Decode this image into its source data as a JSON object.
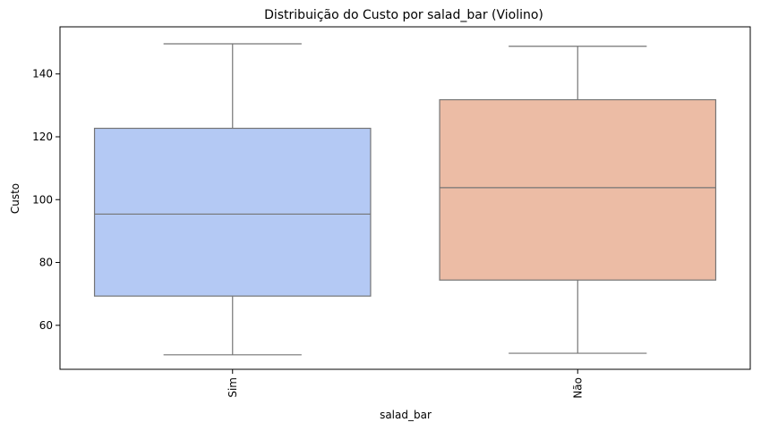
{
  "chart_data": {
    "type": "box",
    "title": "Distribuição do Custo por salad_bar (Violino)",
    "xlabel": "salad_bar",
    "ylabel": "Custo",
    "ylim": [
      46,
      155
    ],
    "yticks": [
      60,
      80,
      100,
      120,
      140
    ],
    "grid": false,
    "legend": "none",
    "categories": [
      "Sim",
      "Não"
    ],
    "boxes": [
      {
        "category": "Sim",
        "whisker_low": 50.6,
        "q1": 69.3,
        "median": 95.4,
        "q3": 122.7,
        "whisker_high": 149.6,
        "color": "#b4c9f4"
      },
      {
        "category": "Não",
        "whisker_low": 51.1,
        "q1": 74.4,
        "median": 103.8,
        "q3": 131.8,
        "whisker_high": 148.8,
        "color": "#ecbca5"
      }
    ],
    "line_color": "#757575"
  }
}
